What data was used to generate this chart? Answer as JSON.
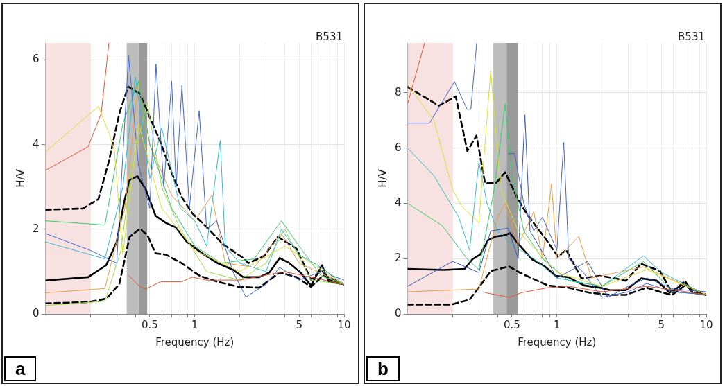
{
  "chart_data": [
    {
      "type": "line",
      "xlabel": "Frequency (Hz)",
      "ylabel": "H/V",
      "log": "x",
      "grid": true,
      "legend": false,
      "annotations": [
        "B531",
        "a"
      ],
      "xlim": [
        0.1,
        10
      ],
      "ylim": [
        0,
        6.4
      ],
      "yticks": [
        0,
        2,
        4,
        6
      ],
      "xticks": [
        {
          "value": 0.2,
          "label": null
        },
        {
          "value": 0.3,
          "label": null
        },
        {
          "value": 0.4,
          "label": null
        },
        0.5,
        {
          "value": 0.6,
          "label": null
        },
        {
          "value": 0.7,
          "label": null
        },
        {
          "value": 0.8,
          "label": null
        },
        {
          "value": 0.9,
          "label": null
        },
        1,
        {
          "value": 2,
          "label": null
        },
        {
          "value": 3,
          "label": null
        },
        {
          "value": 4,
          "label": null
        },
        5,
        {
          "value": 6,
          "label": null
        },
        {
          "value": 7,
          "label": null
        },
        {
          "value": 8,
          "label": null
        },
        {
          "value": 9,
          "label": null
        },
        10
      ],
      "bands": [
        {
          "axis": "x",
          "from": 0.1,
          "to": 0.2,
          "color": "#f7e1e1"
        },
        {
          "axis": "x",
          "from": 0.35,
          "to": 0.42,
          "color": "#bdbdbd"
        },
        {
          "axis": "x",
          "from": 0.42,
          "to": 0.48,
          "color": "#9a9a9a"
        }
      ],
      "series": [
        {
          "color": "#dd5533",
          "x": [
            0.1,
            0.193,
            0.236,
            0.266,
            0.3,
            0.358,
            0.43,
            0.47,
            0.589,
            0.815,
            0.96,
            1.2,
            2,
            4,
            10
          ],
          "values": [
            3.39,
            3.95,
            4.73,
            6.4,
            null,
            0.92,
            0.64,
            0.59,
            0.76,
            0.76,
            0.87,
            0.8,
            0.8,
            1.0,
            0.7
          ]
        },
        {
          "color": "#dddd33",
          "x": [
            0.1,
            0.226,
            0.266,
            0.29,
            0.33,
            0.42,
            0.6,
            1,
            2,
            4,
            10
          ],
          "values": [
            3.83,
            4.9,
            4.28,
            3.83,
            1.4,
            4.5,
            2.5,
            1.5,
            1.0,
            1.6,
            0.7
          ]
        },
        {
          "color": "#4466cc",
          "x": [
            0.1,
            0.2,
            0.3,
            0.36,
            0.42,
            0.5,
            0.55,
            0.62,
            0.7,
            0.75,
            0.82,
            0.92,
            1.07,
            1.2,
            1.4,
            1.8,
            2.2,
            3,
            3.7,
            5,
            7,
            10
          ],
          "values": [
            1.9,
            1.5,
            1.2,
            6.1,
            3.5,
            2.5,
            5.9,
            3.0,
            5.5,
            3.0,
            5.4,
            2.5,
            4.8,
            2.0,
            2.2,
            1.0,
            0.4,
            0.7,
            1.1,
            0.8,
            1.0,
            0.8
          ]
        },
        {
          "color": "#33bbcc",
          "x": [
            0.1,
            0.25,
            0.33,
            0.4,
            0.5,
            0.6,
            0.8,
            1,
            1.2,
            1.48,
            1.6,
            2,
            3,
            3.8,
            5,
            7,
            10
          ],
          "values": [
            1.7,
            1.3,
            3,
            5.6,
            3.2,
            4.4,
            2.5,
            2.2,
            1.6,
            4.1,
            1.6,
            1.2,
            1.0,
            2.0,
            1.4,
            1.1,
            0.7
          ]
        },
        {
          "color": "#33cc66",
          "x": [
            0.1,
            0.25,
            0.33,
            0.42,
            0.5,
            0.7,
            1,
            1.5,
            2.5,
            3.8,
            5,
            7,
            10
          ],
          "values": [
            2.2,
            2.1,
            4.5,
            5.5,
            4.0,
            2.5,
            1.6,
            1.2,
            1.3,
            2.2,
            1.6,
            0.9,
            0.7
          ]
        },
        {
          "color": "#99dd44",
          "x": [
            0.1,
            0.25,
            0.32,
            0.38,
            0.48,
            0.6,
            0.8,
            1.2,
            2,
            3,
            4,
            6,
            10
          ],
          "values": [
            0.2,
            0.3,
            1.5,
            3.5,
            5.0,
            3.0,
            2.0,
            1.0,
            0.8,
            1.2,
            2.0,
            0.8,
            0.7
          ]
        },
        {
          "color": "#ee9944",
          "x": [
            0.1,
            0.25,
            0.34,
            0.42,
            0.5,
            0.7,
            1,
            1.3,
            1.6,
            2.5,
            3.8,
            5,
            10
          ],
          "values": [
            0.5,
            0.6,
            2.5,
            5.5,
            4.0,
            2.8,
            2.2,
            2.8,
            1.2,
            1.1,
            1.9,
            1.2,
            0.7
          ]
        },
        {
          "color": "#000000",
          "x": [
            0.1,
            0.193,
            0.255,
            0.3,
            0.337,
            0.366,
            0.413,
            0.47,
            0.546,
            0.64,
            0.75,
            0.88,
            1.12,
            1.42,
            1.81,
            2.11,
            2.7,
            3.16,
            3.7,
            4.3,
            5.1,
            6.0,
            7.1,
            7.9,
            10
          ],
          "values": [
            0.79,
            0.87,
            1.15,
            1.7,
            2.66,
            3.16,
            3.25,
            2.94,
            2.32,
            2.15,
            2.04,
            1.71,
            1.43,
            1.2,
            1.04,
            0.87,
            0.87,
            0.98,
            1.32,
            1.2,
            0.98,
            0.67,
            1.15,
            0.76,
            0.7
          ]
        },
        {
          "color": "#000000",
          "line_style": "dashed",
          "x": [
            0.1,
            0.178,
            0.226,
            0.266,
            0.312,
            0.358,
            0.429,
            0.503,
            0.589,
            0.69,
            0.815,
            0.96,
            1.21,
            1.54,
            2.11,
            2.29,
            2.92,
            3.6,
            4.8,
            6.0,
            7.1,
            7.9,
            10
          ],
          "values": [
            2.46,
            2.49,
            2.71,
            3.61,
            4.73,
            5.37,
            5.2,
            4.62,
            4.06,
            3.39,
            2.77,
            2.38,
            2.04,
            1.65,
            1.32,
            1.2,
            1.37,
            1.82,
            1.54,
            0.81,
            1.04,
            0.81,
            0.7
          ]
        },
        {
          "color": "#000000",
          "line_style": "dashed",
          "x": [
            0.1,
            0.193,
            0.255,
            0.312,
            0.366,
            0.429,
            0.48,
            0.546,
            0.64,
            0.815,
            1.08,
            1.42,
            1.96,
            2.7,
            3.7,
            4.8,
            6.0,
            7.3,
            10
          ],
          "values": [
            0.25,
            0.28,
            0.36,
            0.7,
            1.82,
            2.01,
            1.87,
            1.43,
            1.4,
            1.2,
            0.9,
            0.76,
            0.64,
            0.62,
            0.98,
            0.87,
            0.64,
            0.92,
            0.7
          ]
        }
      ]
    },
    {
      "type": "line",
      "xlabel": "Frequency (Hz)",
      "ylabel": "H/V",
      "log": "x",
      "grid": true,
      "legend": false,
      "annotations": [
        "B531",
        "b"
      ],
      "xlim": [
        0.1,
        10
      ],
      "ylim": [
        0,
        9.8
      ],
      "yticks": [
        0,
        2,
        4,
        6,
        8
      ],
      "xticks": [
        {
          "value": 0.2,
          "label": null
        },
        {
          "value": 0.3,
          "label": null
        },
        {
          "value": 0.4,
          "label": null
        },
        0.5,
        {
          "value": 0.6,
          "label": null
        },
        {
          "value": 0.7,
          "label": null
        },
        {
          "value": 0.8,
          "label": null
        },
        {
          "value": 0.9,
          "label": null
        },
        1,
        {
          "value": 2,
          "label": null
        },
        {
          "value": 3,
          "label": null
        },
        {
          "value": 4,
          "label": null
        },
        5,
        {
          "value": 6,
          "label": null
        },
        {
          "value": 7,
          "label": null
        },
        {
          "value": 8,
          "label": null
        },
        {
          "value": 9,
          "label": null
        },
        10
      ],
      "bands": [
        {
          "axis": "x",
          "from": 0.1,
          "to": 0.2,
          "color": "#f7e1e1"
        },
        {
          "axis": "x",
          "from": 0.375,
          "to": 0.46,
          "color": "#bdbdbd"
        },
        {
          "axis": "x",
          "from": 0.46,
          "to": 0.548,
          "color": "#9a9a9a"
        }
      ],
      "series": [
        {
          "color": "#dd5533",
          "x": [
            0.1,
            0.13,
            0.2,
            0.33,
            0.48,
            0.58,
            0.87,
            1.2,
            2,
            4,
            10
          ],
          "values": [
            7.6,
            9.8,
            null,
            0.77,
            0.6,
            0.77,
            0.95,
            1.0,
            0.8,
            1.0,
            0.7
          ]
        },
        {
          "color": "#dddd33",
          "x": [
            0.1,
            0.15,
            0.2,
            0.23,
            0.3,
            0.36,
            0.42,
            0.55,
            1,
            2,
            4,
            10
          ],
          "values": [
            8.3,
            7.0,
            4.5,
            3.9,
            3.3,
            8.8,
            4.5,
            3.0,
            1.5,
            1.0,
            1.6,
            0.7
          ]
        },
        {
          "color": "#4466cc",
          "x": [
            0.1,
            0.14,
            0.206,
            0.25,
            0.265,
            0.29,
            0.34,
            0.47,
            0.52,
            0.6,
            0.7,
            0.8,
            1.0,
            1.11,
            1.2,
            1.5,
            2,
            3,
            4,
            6,
            10
          ],
          "values": [
            6.9,
            6.9,
            8.4,
            7.4,
            7.4,
            9.8,
            null,
            5.8,
            5.8,
            4.0,
            3.0,
            3.5,
            2.3,
            6.2,
            2.0,
            1.5,
            0.6,
            0.8,
            1.1,
            0.8,
            0.7
          ]
        },
        {
          "color": "#3355bb",
          "x": [
            0.1,
            0.2,
            0.3,
            0.36,
            0.47,
            0.55,
            0.61,
            0.66,
            0.75,
            1,
            1.6,
            2.2,
            3,
            4,
            6,
            10
          ],
          "values": [
            1.0,
            1.9,
            1.5,
            3.0,
            3.1,
            2.0,
            7.2,
            3.0,
            2.5,
            1.3,
            1.9,
            0.6,
            1.0,
            1.3,
            0.9,
            0.8
          ]
        },
        {
          "color": "#33bbcc",
          "x": [
            0.1,
            0.15,
            0.22,
            0.26,
            0.3,
            0.34,
            0.4,
            0.5,
            0.7,
            1,
            2,
            3.8,
            5,
            10
          ],
          "values": [
            6.0,
            5.0,
            3.5,
            2.3,
            5.5,
            4.0,
            3.0,
            2.5,
            2.0,
            1.3,
            1.0,
            2.1,
            1.5,
            0.7
          ]
        },
        {
          "color": "#33cc66",
          "x": [
            0.1,
            0.17,
            0.25,
            0.3,
            0.38,
            0.45,
            0.5,
            0.6,
            0.8,
            1.2,
            2,
            3.8,
            6,
            10
          ],
          "values": [
            4.0,
            3.2,
            2.0,
            1.6,
            4.5,
            7.6,
            5.0,
            3.0,
            2.0,
            1.2,
            1.0,
            1.9,
            0.8,
            0.7
          ]
        },
        {
          "color": "#ee9944",
          "x": [
            0.1,
            0.3,
            0.4,
            0.45,
            0.55,
            0.7,
            0.8,
            0.92,
            1.0,
            1.4,
            1.7,
            3.8,
            10
          ],
          "values": [
            0.8,
            0.9,
            3.5,
            4.0,
            2.5,
            3.7,
            2.0,
            4.7,
            2.0,
            2.8,
            1.3,
            1.7,
            0.7
          ]
        },
        {
          "color": "#000000",
          "x": [
            0.1,
            0.175,
            0.241,
            0.272,
            0.307,
            0.346,
            0.39,
            0.44,
            0.486,
            0.56,
            0.68,
            0.83,
            0.98,
            1.19,
            1.52,
            1.93,
            2.27,
            2.89,
            3.67,
            4.67,
            5.7,
            7.2,
            8.1,
            10
          ],
          "values": [
            1.63,
            1.59,
            1.63,
            1.98,
            2.15,
            2.67,
            2.8,
            2.84,
            2.92,
            2.49,
            1.98,
            1.72,
            1.38,
            1.33,
            1.03,
            0.95,
            0.86,
            0.86,
            1.29,
            1.2,
            0.77,
            1.12,
            0.77,
            0.69
          ]
        },
        {
          "color": "#000000",
          "line_style": "dashed",
          "x": [
            0.1,
            0.162,
            0.21,
            0.251,
            0.289,
            0.33,
            0.39,
            0.45,
            0.54,
            0.63,
            0.83,
            1.02,
            1.15,
            1.46,
            1.93,
            2.46,
            2.89,
            3.67,
            4.9,
            5.9,
            7.2,
            8.1,
            10
          ],
          "values": [
            8.21,
            7.53,
            7.87,
            5.89,
            6.45,
            4.73,
            4.73,
            5.12,
            4.22,
            3.61,
            2.75,
            2.06,
            2.32,
            1.29,
            1.38,
            1.29,
            1.2,
            1.81,
            1.55,
            0.77,
            1.2,
            0.77,
            0.69
          ]
        },
        {
          "color": "#000000",
          "line_style": "dashed",
          "x": [
            0.1,
            0.197,
            0.26,
            0.307,
            0.36,
            0.476,
            0.58,
            0.87,
            1.19,
            1.64,
            2.27,
            2.89,
            3.98,
            5.1,
            5.9,
            7.2,
            10
          ],
          "values": [
            0.34,
            0.34,
            0.52,
            1.03,
            1.55,
            1.72,
            1.46,
            1.03,
            0.95,
            0.77,
            0.69,
            0.69,
            0.95,
            0.77,
            0.69,
            1.03,
            0.69
          ]
        }
      ]
    }
  ]
}
